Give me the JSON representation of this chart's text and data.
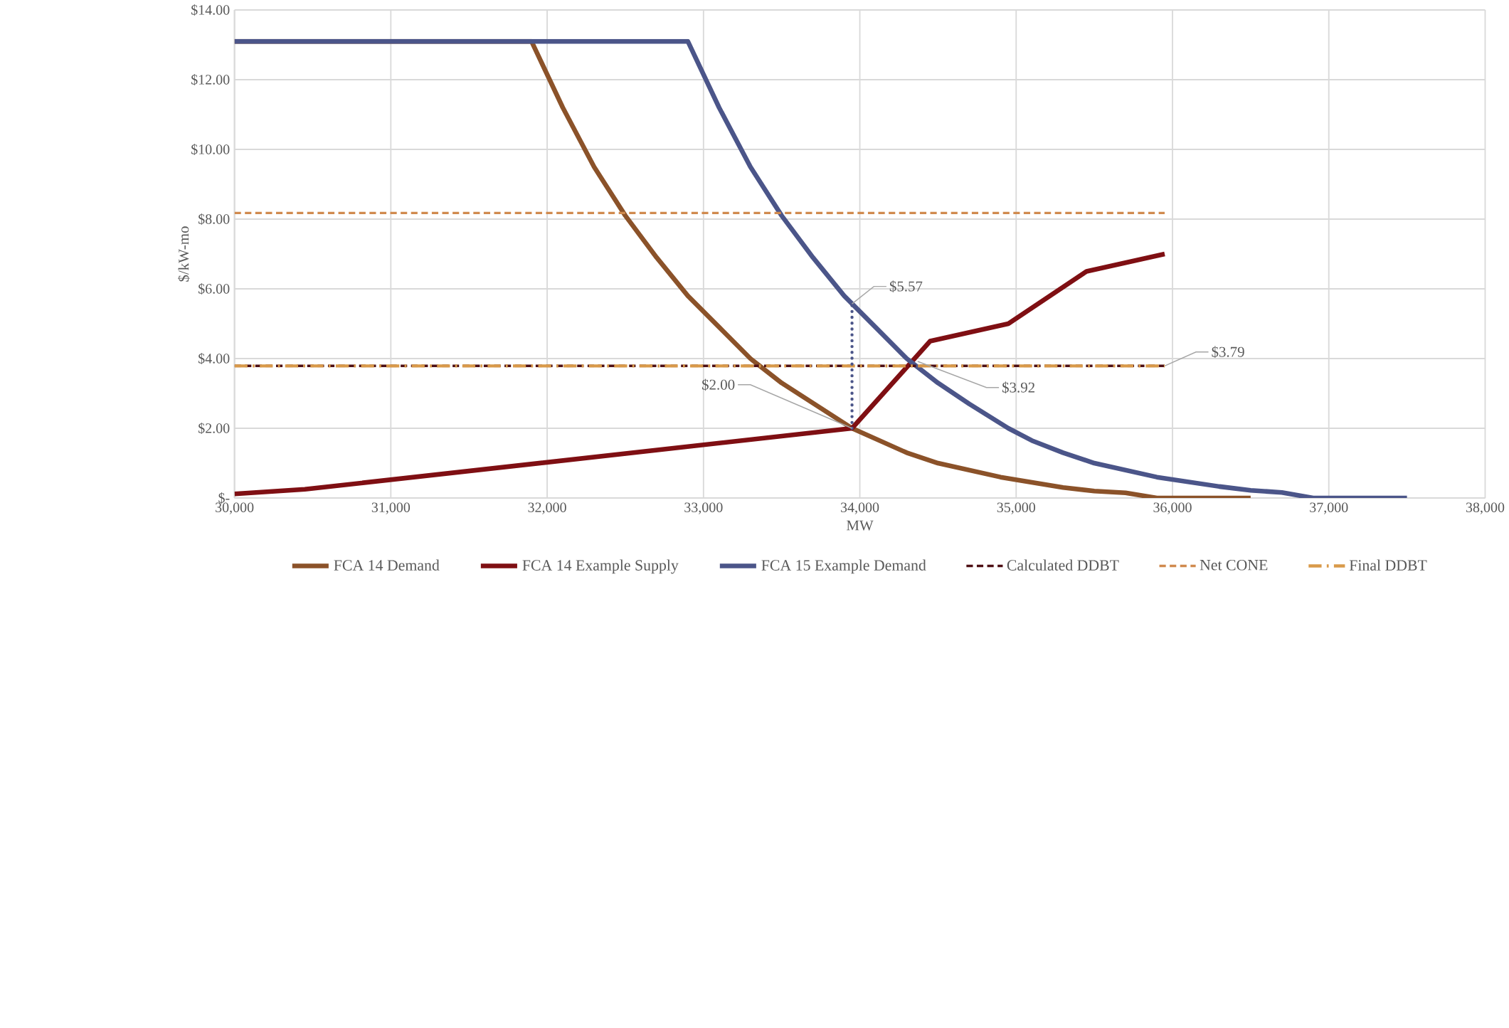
{
  "chart_data": {
    "type": "line",
    "xlabel": "MW",
    "ylabel": "$/kW-mo",
    "xlim": [
      30000,
      38000
    ],
    "ylim": [
      0,
      14
    ],
    "xticks": [
      {
        "value": 30000,
        "label": "30,000"
      },
      {
        "value": 31000,
        "label": "31,000"
      },
      {
        "value": 32000,
        "label": "32,000"
      },
      {
        "value": 33000,
        "label": "33,000"
      },
      {
        "value": 34000,
        "label": "34,000"
      },
      {
        "value": 35000,
        "label": "35,000"
      },
      {
        "value": 36000,
        "label": "36,000"
      },
      {
        "value": 37000,
        "label": "37,000"
      },
      {
        "value": 38000,
        "label": "38,000"
      }
    ],
    "yticks": [
      {
        "value": 0,
        "label": "$-"
      },
      {
        "value": 2,
        "label": "$2.00"
      },
      {
        "value": 4,
        "label": "$4.00"
      },
      {
        "value": 6,
        "label": "$6.00"
      },
      {
        "value": 8,
        "label": "$8.00"
      },
      {
        "value": 10,
        "label": "$10.00"
      },
      {
        "value": 12,
        "label": "$12.00"
      },
      {
        "value": 14,
        "label": "$14.00"
      }
    ],
    "grid": true,
    "legend": "bottom",
    "series": [
      {
        "name": "FCA 14 Demand",
        "color": "#8b5229",
        "line_style": "solid",
        "x": [
          30000,
          31900,
          32100,
          32300,
          32500,
          32700,
          32900,
          33100,
          33300,
          33500,
          33950,
          34300,
          34500,
          34900,
          35300,
          35500,
          35700,
          35900,
          36500
        ],
        "values": [
          13.1,
          13.1,
          11.2,
          9.5,
          8.1,
          6.9,
          5.8,
          4.9,
          4.0,
          3.3,
          2.0,
          1.3,
          1.0,
          0.6,
          0.3,
          0.2,
          0.15,
          0,
          0
        ]
      },
      {
        "name": "FCA 14 Example Supply",
        "color": "#7f0f13",
        "line_style": "solid",
        "x": [
          30000,
          30450,
          33950,
          34450,
          34950,
          35450,
          35950
        ],
        "values": [
          0.12,
          0.25,
          2.0,
          4.5,
          5.0,
          6.5,
          7.0
        ]
      },
      {
        "name": "FCA 15 Example Demand",
        "color": "#4b5589",
        "line_style": "solid",
        "x": [
          30000,
          32900,
          33100,
          33300,
          33500,
          33700,
          33900,
          34100,
          34300,
          34500,
          34700,
          34950,
          35100,
          35300,
          35500,
          35900,
          36300,
          36500,
          36700,
          36900,
          37500
        ],
        "values": [
          13.1,
          13.1,
          11.2,
          9.5,
          8.1,
          6.9,
          5.8,
          4.9,
          4.0,
          3.3,
          2.7,
          2.0,
          1.65,
          1.3,
          1.0,
          0.6,
          0.33,
          0.22,
          0.16,
          0,
          0
        ]
      },
      {
        "name": "Calculated DDBT",
        "color": "#4d0f14",
        "line_style": "dashed",
        "x": [
          30000,
          35950
        ],
        "values": [
          3.79,
          3.79
        ]
      },
      {
        "name": "Net CONE",
        "color": "#d08a4e",
        "line_style": "dashed",
        "x": [
          30000,
          35950
        ],
        "values": [
          8.18,
          8.18
        ]
      },
      {
        "name": "Final DDBT",
        "color": "#d99a4a",
        "line_style": "dashdot",
        "x": [
          30000,
          35950
        ],
        "values": [
          3.79,
          3.79
        ]
      },
      {
        "color": "#4b5589",
        "line_style": "dotted",
        "x": [
          33950,
          33950
        ],
        "values": [
          2.0,
          5.57
        ]
      }
    ],
    "annotations": [
      {
        "text": "$5.57",
        "x": 33950,
        "y": 5.57
      },
      {
        "text": "$3.79",
        "x": 35950,
        "y": 3.79
      },
      {
        "text": "$3.92",
        "x": 34370,
        "y": 3.92
      },
      {
        "text": "$2.00",
        "x": 33950,
        "y": 2.0
      }
    ]
  }
}
